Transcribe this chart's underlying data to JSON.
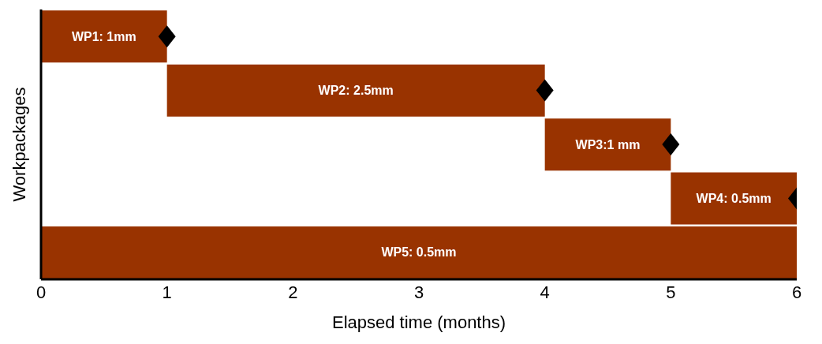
{
  "chart_data": {
    "type": "bar",
    "orientation": "horizontal",
    "xlabel": "Elapsed time (months)",
    "ylabel": "Workpackages",
    "categories": [
      null,
      null,
      null,
      null,
      null
    ],
    "xlim": [
      0,
      6
    ],
    "xticks": [
      0,
      1,
      2,
      3,
      4,
      5,
      6
    ],
    "tick_labels": "x",
    "series": [
      {
        "type": "bar",
        "color": "#993300",
        "base": [
          0,
          1,
          4,
          5,
          0
        ],
        "values": [
          1,
          3,
          1,
          1,
          6
        ],
        "value_labels": [
          "WP1: 1mm",
          "WP2: 2.5mm",
          "WP3:1 mm",
          "WP4: 0.5mm",
          "WP5: 0.5mm"
        ]
      },
      {
        "type": "scatter",
        "color": "#000000",
        "marker": "diamond",
        "values": [
          1,
          4,
          5,
          6,
          null
        ]
      }
    ]
  }
}
